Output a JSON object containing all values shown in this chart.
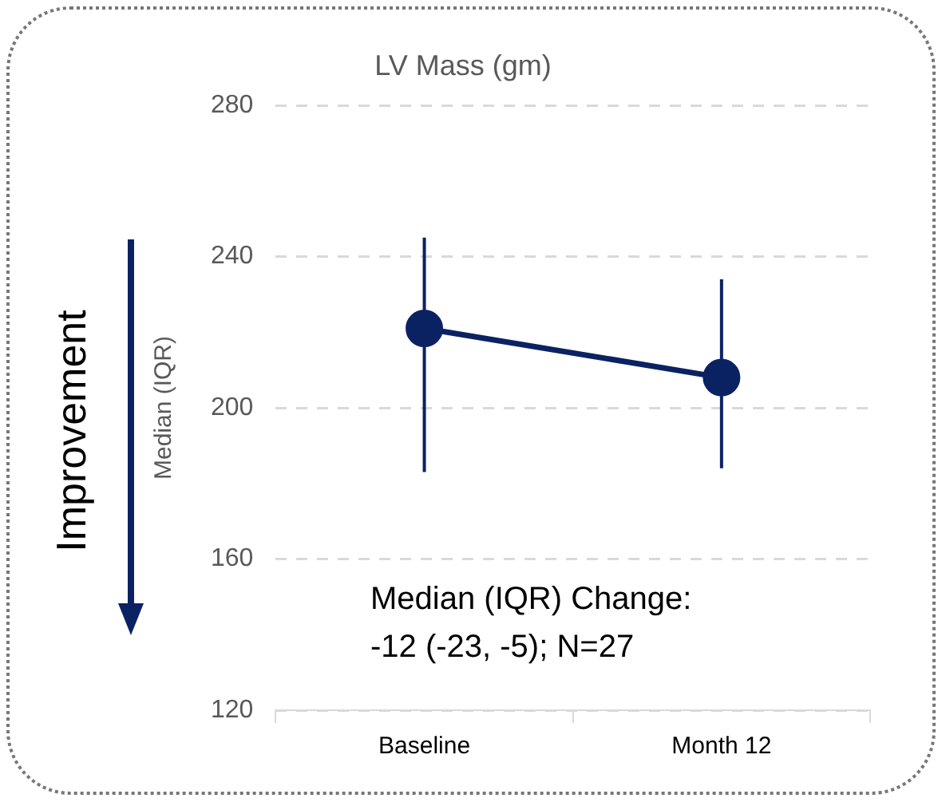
{
  "chart_data": {
    "type": "line",
    "title": "LV Mass (gm)",
    "ylabel": "Median (IQR)",
    "categories": [
      "Baseline",
      "Month 12"
    ],
    "series": [
      {
        "color": "#0b2262",
        "values": [
          221,
          208
        ],
        "errors": [
          [
            183,
            245
          ],
          [
            184,
            234
          ]
        ]
      }
    ],
    "ylim": [
      120,
      280
    ],
    "yticks": [
      120,
      160,
      200,
      240,
      280
    ],
    "grid": "y",
    "marker": "circle",
    "line_style": "solid",
    "legend": false,
    "annotations": [
      "Median (IQR) Change:\n-12 (-23, -5); N=27",
      "Improvement"
    ]
  }
}
